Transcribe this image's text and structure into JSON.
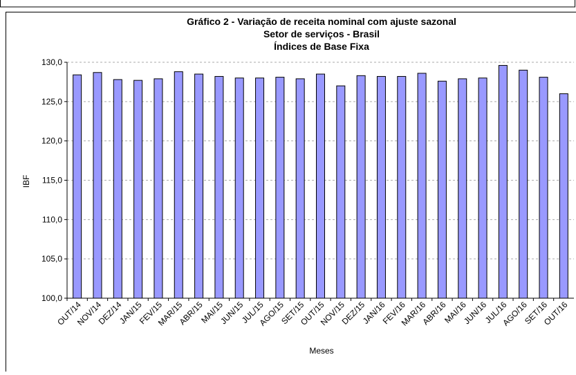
{
  "chart_data": {
    "type": "bar",
    "title": [
      "Gráfico 2 - Variação de receita nominal com ajuste sazonal",
      "Setor de serviços - Brasil",
      "Índices de Base Fixa"
    ],
    "x_label": "Meses",
    "y_label": "IBF",
    "categories": [
      "OUT/14",
      "NOV/14",
      "DEZ/14",
      "JAN/15",
      "FEV/15",
      "MAR/15",
      "ABR/15",
      "MAI/15",
      "JUN/15",
      "JUL/15",
      "AGO/15",
      "SET/15",
      "OUT/15",
      "NOV/15",
      "DEZ/15",
      "JAN/16",
      "FEV/16",
      "MAR/16",
      "ABR/16",
      "MAI/16",
      "JUN/16",
      "JUL/16",
      "AGO/16",
      "SET/16",
      "OUT/16"
    ],
    "values": [
      128.4,
      128.7,
      127.8,
      127.7,
      127.9,
      128.8,
      128.5,
      128.2,
      128.0,
      128.0,
      128.1,
      127.9,
      128.5,
      127.0,
      128.3,
      128.2,
      128.2,
      128.6,
      127.6,
      127.9,
      128.0,
      129.6,
      129.0,
      128.1,
      126.0
    ],
    "color": "#9999ff",
    "ylim": [
      100,
      130
    ],
    "yticks": [
      {
        "value": 100,
        "label": "100,0"
      },
      {
        "value": 105,
        "label": "105,0"
      },
      {
        "value": 110,
        "label": "110,0"
      },
      {
        "value": 115,
        "label": "115,0"
      },
      {
        "value": 120,
        "label": "120,0"
      },
      {
        "value": 125,
        "label": "125,0"
      },
      {
        "value": 130,
        "label": "130,0"
      }
    ],
    "grid": true
  }
}
